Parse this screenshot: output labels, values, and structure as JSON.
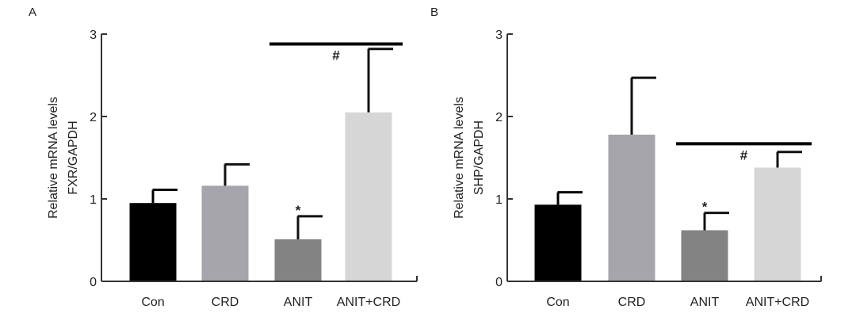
{
  "chart_data": [
    {
      "type": "bar",
      "panel_label": "A",
      "ylabel_lines": [
        "Relative mRNA levels",
        "FXR/GAPDH"
      ],
      "xlabel": "",
      "ylim": [
        0,
        3
      ],
      "yticks": [
        "0",
        "1",
        "2",
        "3"
      ],
      "categories": [
        "Con",
        "CRD",
        "ANIT",
        "ANIT+CRD"
      ],
      "values": [
        0.95,
        1.16,
        0.51,
        2.05
      ],
      "errors": [
        0.16,
        0.26,
        0.28,
        0.77
      ],
      "bar_colors": [
        "#000000",
        "#a5a5ab",
        "#838383",
        "#d6d6d6"
      ],
      "markers": [
        {
          "category": "ANIT",
          "text": "*"
        }
      ],
      "significance": {
        "from": "ANIT",
        "to": "ANIT+CRD",
        "y": 2.88,
        "label": "#"
      },
      "grid": false,
      "legend": "none"
    },
    {
      "type": "bar",
      "panel_label": "B",
      "ylabel_lines": [
        "Relative mRNA levels",
        "SHP/GAPDH"
      ],
      "xlabel": "",
      "ylim": [
        0,
        3
      ],
      "yticks": [
        "0",
        "1",
        "2",
        "3"
      ],
      "categories": [
        "Con",
        "CRD",
        "ANIT",
        "ANIT+CRD"
      ],
      "values": [
        0.93,
        1.78,
        0.62,
        1.38
      ],
      "errors": [
        0.15,
        0.69,
        0.21,
        0.19
      ],
      "bar_colors": [
        "#000000",
        "#a5a5ab",
        "#838383",
        "#d6d6d6"
      ],
      "markers": [
        {
          "category": "ANIT",
          "text": "*"
        }
      ],
      "significance": {
        "from": "ANIT",
        "to": "ANIT+CRD",
        "y": 1.67,
        "label": "#"
      },
      "grid": false,
      "legend": "none"
    }
  ]
}
